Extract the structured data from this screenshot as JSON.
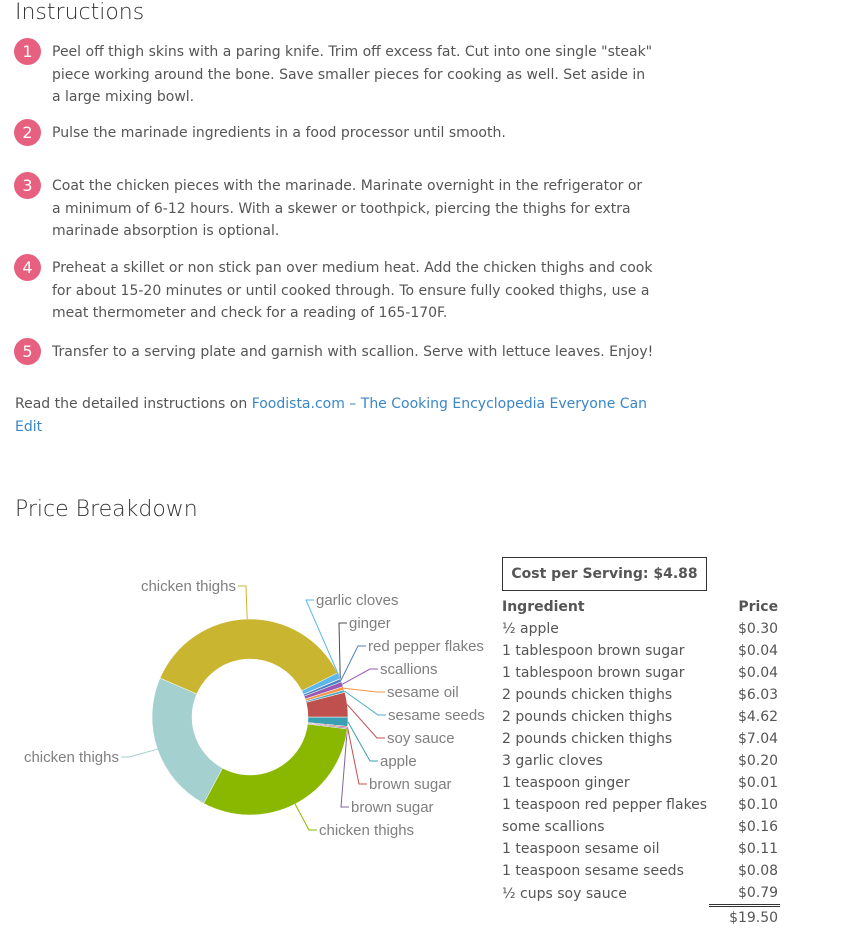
{
  "instructions": {
    "title": "Instructions",
    "steps": [
      {
        "n": "1",
        "text": "Peel off thigh skins with a paring knife. Trim off excess fat. Cut into one single \"steak\" piece working around the bone. Save smaller pieces for cooking as well. Set aside in a large mixing bowl."
      },
      {
        "n": "2",
        "text": "Pulse the marinade ingredients in a food processor until smooth."
      },
      {
        "n": "3",
        "text": "Coat the chicken pieces with the marinade. Marinate overnight in the refrigerator or a minimum of 6-12 hours. With a skewer or toothpick, piercing the thighs for extra marinade absorption is optional."
      },
      {
        "n": "4",
        "text": "Preheat a skillet or non stick pan over medium heat. Add the chicken thighs and cook for about 15-20 minutes or until cooked through. To ensure fully cooked thighs, use a meat thermometer and check for a reading of 165-170F."
      },
      {
        "n": "5",
        "text": "Transfer to a serving plate and garnish with scallion. Serve with lettuce leaves. Enjoy!"
      }
    ],
    "read_more_prefix": "Read the detailed instructions on ",
    "read_more_link": "Foodista.com – The Cooking Encyclopedia Everyone Can Edit"
  },
  "price": {
    "title": "Price Breakdown",
    "cost_per_serving": "Cost per Serving: $4.88",
    "headers": [
      "Ingredient",
      "Price"
    ],
    "rows": [
      [
        "½ apple",
        "$0.30"
      ],
      [
        "1 tablespoon brown sugar",
        "$0.04"
      ],
      [
        "1 tablespoon brown sugar",
        "$0.04"
      ],
      [
        "2 pounds chicken thighs",
        "$6.03"
      ],
      [
        "2 pounds chicken thighs",
        "$4.62"
      ],
      [
        "2 pounds chicken thighs",
        "$7.04"
      ],
      [
        "3 garlic cloves",
        "$0.20"
      ],
      [
        "1 teaspoon ginger",
        "$0.01"
      ],
      [
        "1 teaspoon red pepper flakes",
        "$0.10"
      ],
      [
        "some scallions",
        "$0.16"
      ],
      [
        "1 teaspoon sesame oil",
        "$0.11"
      ],
      [
        "1 teaspoon sesame seeds",
        "$0.08"
      ],
      [
        "½ cups soy sauce",
        "$0.79"
      ]
    ],
    "total": "$19.50"
  },
  "chart_data": {
    "type": "pie",
    "donut": true,
    "categories": [
      "apple",
      "brown sugar",
      "brown sugar",
      "chicken thighs",
      "chicken thighs",
      "chicken thighs",
      "garlic cloves",
      "ginger",
      "red pepper flakes",
      "scallions",
      "sesame oil",
      "sesame seeds",
      "soy sauce"
    ],
    "values": [
      0.3,
      0.04,
      0.04,
      6.03,
      4.62,
      7.04,
      0.2,
      0.01,
      0.1,
      0.16,
      0.11,
      0.08,
      0.79
    ],
    "colors": [
      "#3a9fb0",
      "#c0504d",
      "#8064a2",
      "#8ab800",
      "#a5d0d0",
      "#c9b52f",
      "#5db7e8",
      "#4d4d4d",
      "#4f81bd",
      "#9b59b6",
      "#f79646",
      "#4bacc6",
      "#c0504d"
    ]
  }
}
